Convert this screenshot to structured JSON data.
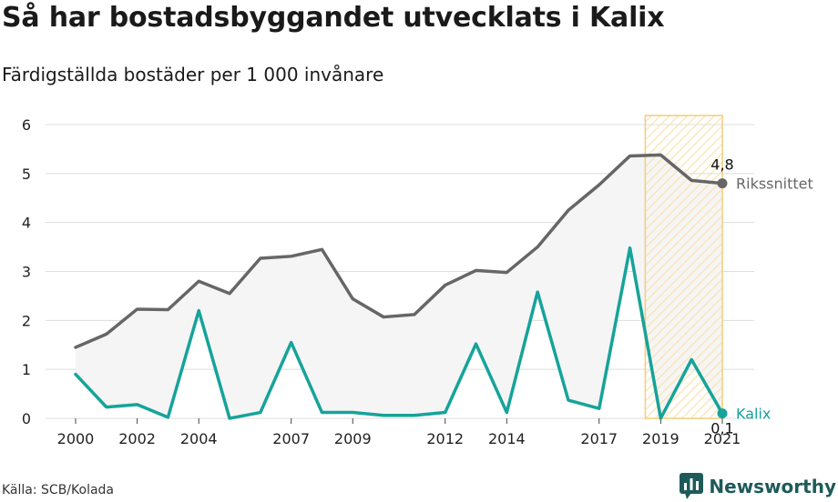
{
  "header": {
    "title": "Så har bostadsbyggandet utvecklats i Kalix",
    "subtitle": "Färdigställda bostäder per 1 000 invånare"
  },
  "footer": {
    "source": "Källa: SCB/Kolada",
    "brand": "Newsworthy"
  },
  "colors": {
    "riket": "#666666",
    "kalix": "#16a39a",
    "band_fill": "#f5f5f5",
    "highlight_stroke": "#f4cd7a",
    "highlight_hatch": "#fae3b0",
    "grid": "#dddddd",
    "brand": "#1f5a5a"
  },
  "chart_data": {
    "type": "line",
    "title": "Så har bostadsbyggandet utvecklats i Kalix",
    "subtitle": "Färdigställda bostäder per 1 000 invånare",
    "xlabel": "",
    "ylabel": "",
    "x": [
      2000,
      2001,
      2002,
      2003,
      2004,
      2005,
      2006,
      2007,
      2008,
      2009,
      2010,
      2011,
      2012,
      2013,
      2014,
      2015,
      2016,
      2017,
      2018,
      2019,
      2020,
      2021
    ],
    "x_ticks": [
      "2000",
      "2002",
      "2004",
      "2007",
      "2009",
      "2012",
      "2014",
      "2017",
      "2019",
      "2021"
    ],
    "ylim": [
      0,
      6
    ],
    "y_ticks": [
      "0",
      "1",
      "2",
      "3",
      "4",
      "5",
      "6"
    ],
    "grid": true,
    "highlight_range": [
      2019,
      2021
    ],
    "series": [
      {
        "name": "Rikssnittet",
        "values": [
          1.45,
          1.72,
          2.23,
          2.22,
          2.8,
          2.55,
          3.27,
          3.31,
          3.45,
          2.44,
          2.07,
          2.12,
          2.72,
          3.02,
          2.98,
          3.5,
          4.25,
          4.77,
          5.36,
          5.38,
          4.86,
          4.8
        ],
        "end_label": "4,8"
      },
      {
        "name": "Kalix",
        "values": [
          0.9,
          0.23,
          0.28,
          0.02,
          2.2,
          0.0,
          0.12,
          1.55,
          0.12,
          0.12,
          0.06,
          0.06,
          0.12,
          1.52,
          0.12,
          2.58,
          0.37,
          0.2,
          3.48,
          0.0,
          1.2,
          0.1
        ],
        "end_label": "0,1"
      }
    ]
  }
}
